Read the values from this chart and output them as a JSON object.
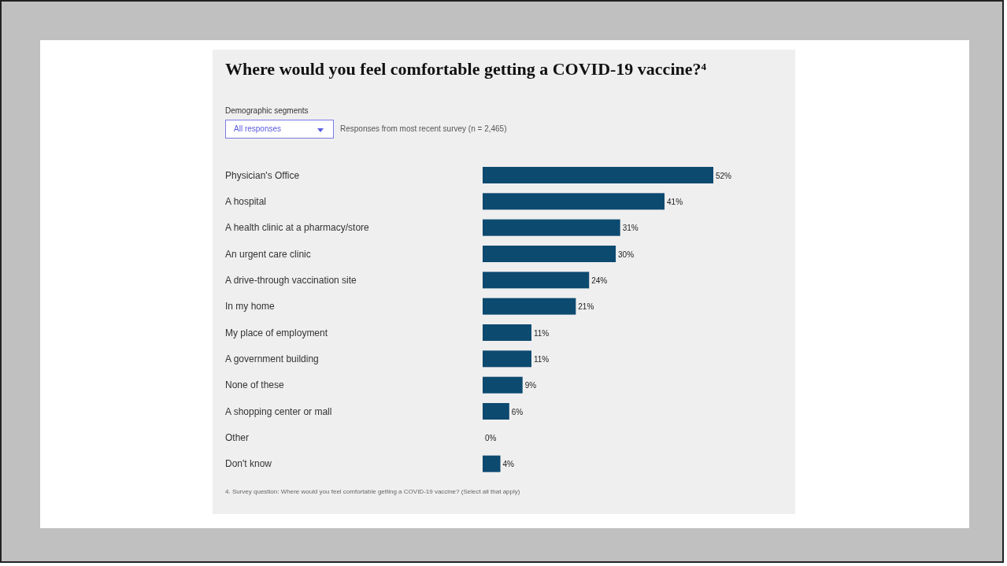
{
  "chart_data": {
    "type": "bar",
    "orientation": "horizontal",
    "title": "Where would you feel comfortable getting a COVID-19 vaccine?⁴",
    "subtitle": "Responses from most recent survey (n = 2,465)",
    "categories": [
      "Physician's Office",
      "A hospital",
      "A health clinic at a pharmacy/store",
      "An urgent care clinic",
      "A drive-through vaccination site",
      "In my home",
      "My place of employment",
      "A government building",
      "None of these",
      "A shopping center or mall",
      "Other",
      "Don't know"
    ],
    "values": [
      52,
      41,
      31,
      30,
      24,
      21,
      11,
      11,
      9,
      6,
      0,
      4
    ],
    "value_labels": [
      "52%",
      "41%",
      "31%",
      "30%",
      "24%",
      "21%",
      "11%",
      "11%",
      "9%",
      "6%",
      "0%",
      "4%"
    ],
    "color": "#0d4a70",
    "annotations": [
      "Demographic segments",
      "All responses",
      "4. Survey question: Where would you feel comfortable getting a COVID-19 vaccine? (Select all that apply)"
    ]
  }
}
